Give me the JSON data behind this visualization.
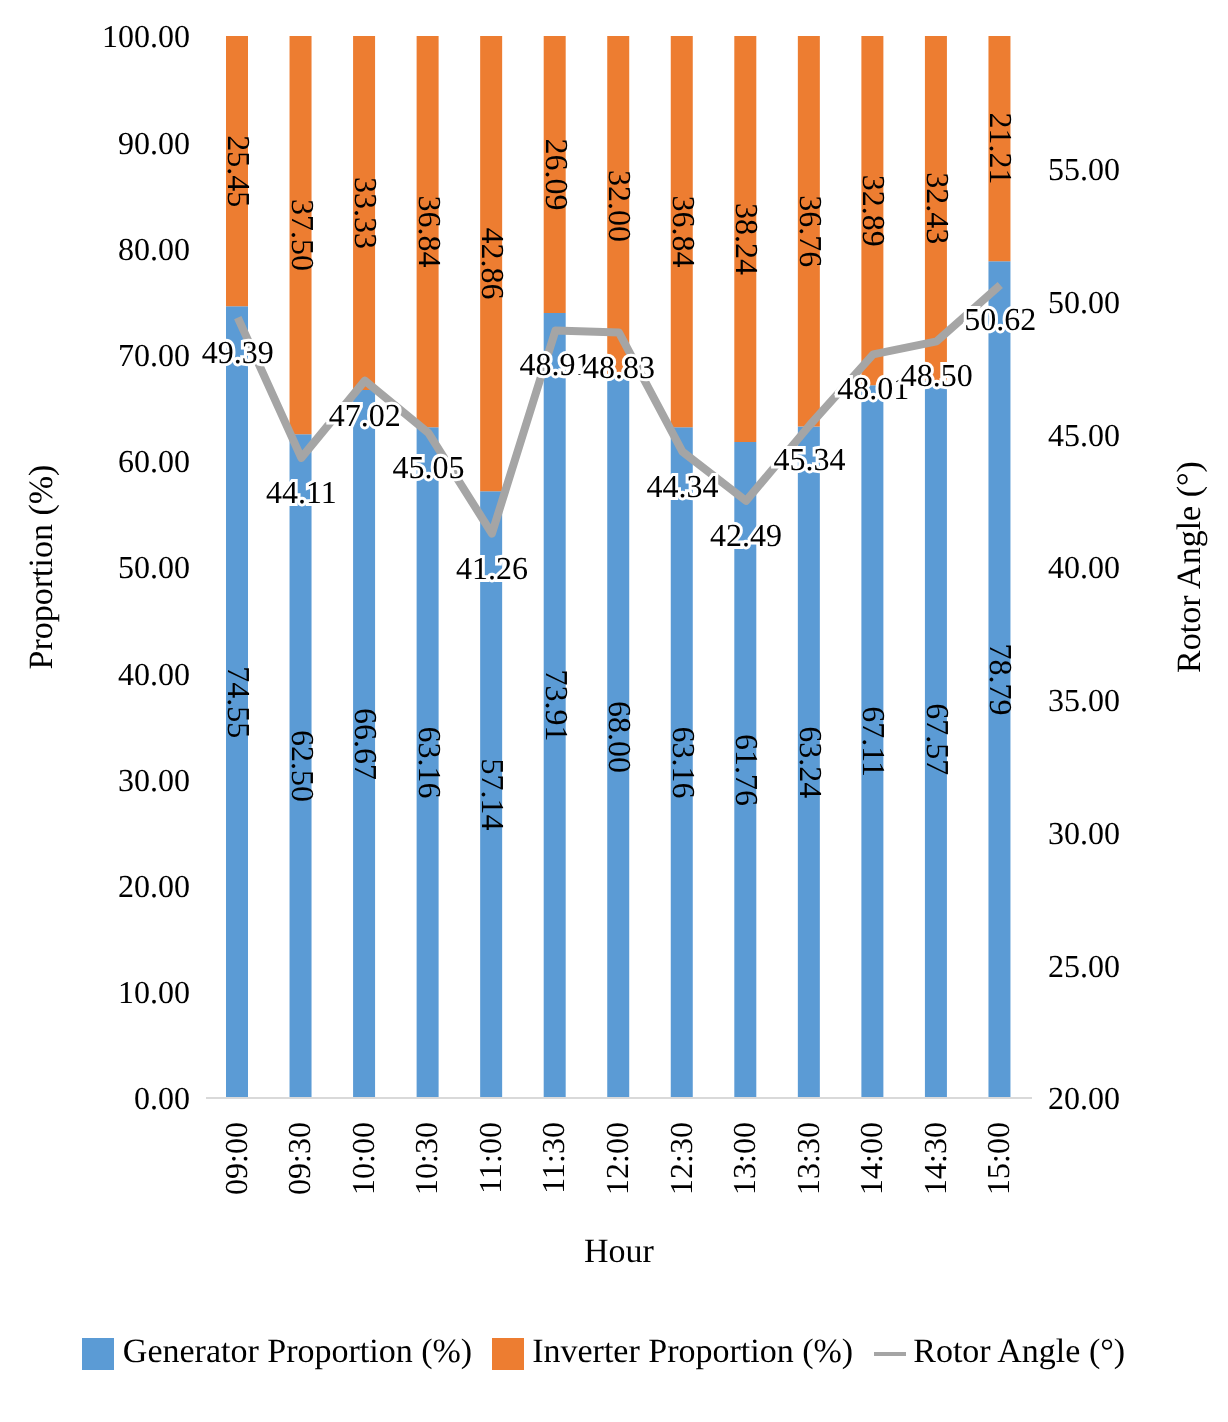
{
  "chart_data": {
    "type": "bar",
    "stacked": true,
    "xlabel": "Hour",
    "ylabel": "Proportion (%)",
    "y2label": "Rotor Angle (°)",
    "categories": [
      "09:00",
      "09:30",
      "10:00",
      "10:30",
      "11:00",
      "11:30",
      "12:00",
      "12:30",
      "13:00",
      "13:30",
      "14:00",
      "14:30",
      "15:00"
    ],
    "series": [
      {
        "name": "Generator Proportion (%)",
        "color": "#5b9bd5",
        "values": [
          74.55,
          62.5,
          66.67,
          63.16,
          57.14,
          73.91,
          68,
          63.16,
          61.76,
          63.24,
          67.11,
          67.57,
          78.79
        ],
        "value_labels": [
          "74.55",
          "62.50",
          "66.67",
          "63.16",
          "57.14",
          "73.91",
          "68.00",
          "63.16",
          "61.76",
          "63.24",
          "67.11",
          "67.57",
          "78.79"
        ]
      },
      {
        "name": "Inverter Proportion (%)",
        "color": "#ed7d31",
        "values": [
          25.45,
          37.5,
          33.33,
          36.84,
          42.86,
          26.09,
          32,
          36.84,
          38.24,
          36.76,
          32.89,
          32.43,
          21.21
        ],
        "value_labels": [
          "25.45",
          "37.50",
          "33.33",
          "36.84",
          "42.86",
          "26.09",
          "32.00",
          "36.84",
          "38.24",
          "36.76",
          "32.89",
          "32.43",
          "21.21"
        ]
      },
      {
        "name": "Rotor Angle (°)",
        "type": "line",
        "axis": "y2",
        "color": "#a5a5a5",
        "values": [
          49.39,
          44.11,
          47.02,
          45.05,
          41.26,
          48.91,
          48.83,
          44.34,
          42.49,
          45.34,
          48.01,
          48.5,
          50.62
        ],
        "value_labels": [
          "49.39",
          "44.11",
          "47.02",
          "45.05",
          "41.26",
          "48.91",
          "48.83",
          "44.34",
          "42.49",
          "45.34",
          "48.01",
          "48.50",
          "50.62"
        ]
      }
    ],
    "ylim": [
      0,
      100
    ],
    "yticks": [
      {
        "value": 0,
        "label": "0.00"
      },
      {
        "value": 10,
        "label": "10.00"
      },
      {
        "value": 20,
        "label": "20.00"
      },
      {
        "value": 30,
        "label": "30.00"
      },
      {
        "value": 40,
        "label": "40.00"
      },
      {
        "value": 50,
        "label": "50.00"
      },
      {
        "value": 60,
        "label": "60.00"
      },
      {
        "value": 70,
        "label": "70.00"
      },
      {
        "value": 80,
        "label": "80.00"
      },
      {
        "value": 90,
        "label": "90.00"
      },
      {
        "value": 100,
        "label": "100.00"
      }
    ],
    "y2lim": [
      20,
      60
    ],
    "y2ticks": [
      {
        "value": 20,
        "label": "20.00"
      },
      {
        "value": 25,
        "label": "25.00"
      },
      {
        "value": 30,
        "label": "30.00"
      },
      {
        "value": 35,
        "label": "35.00"
      },
      {
        "value": 40,
        "label": "40.00"
      },
      {
        "value": 45,
        "label": "45.00"
      },
      {
        "value": 50,
        "label": "50.00"
      },
      {
        "value": 55,
        "label": "55.00"
      }
    ],
    "grid": false,
    "legend": "bottom"
  }
}
